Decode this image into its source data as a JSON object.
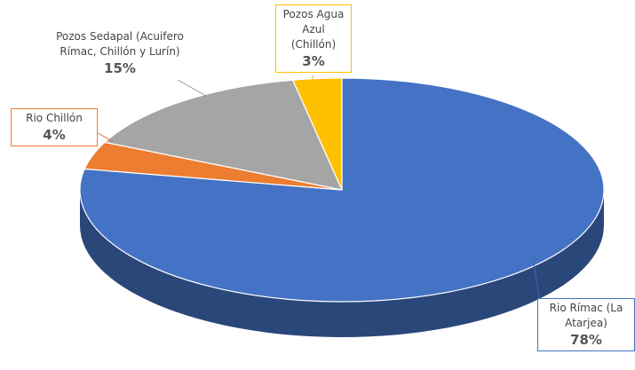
{
  "chart_data": {
    "type": "pie3d",
    "categories": [
      "Rio Rímac (La Atarjea)",
      "Rio Chillón",
      "Pozos Sedapal (Acuifero Rímac, Chillón y Lurín)",
      "Pozos Agua Azul (Chillón)"
    ],
    "values": [
      78,
      4,
      15,
      3
    ],
    "value_labels": [
      "78%",
      "4%",
      "15%",
      "3%"
    ],
    "colors": [
      "#4472c4",
      "#ed7d31",
      "#a5a5a5",
      "#ffc000"
    ]
  }
}
